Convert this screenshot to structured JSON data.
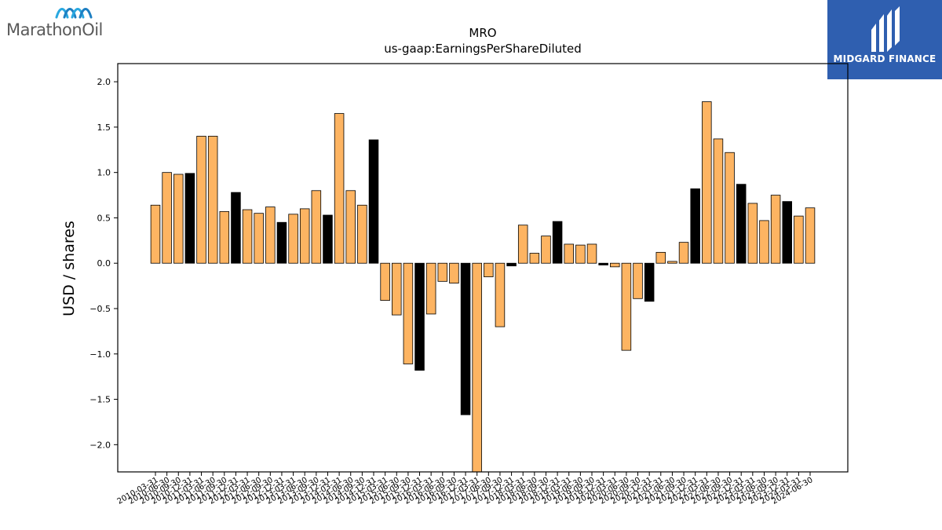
{
  "branding": {
    "left_logo_text": "MarathonOil",
    "right_logo_text": "MIDGARD FINANCE",
    "right_logo_bg": "#2f5fb0"
  },
  "colors": {
    "bar_default": "#fdb462",
    "bar_highlight": "#000000",
    "bar_edge": "#000000"
  },
  "chart_data": {
    "type": "bar",
    "title": "MRO",
    "subtitle": "us-gaap:EarningsPerShareDiluted",
    "xlabel": "",
    "ylabel": "USD / shares",
    "ylim": [
      -2.3,
      2.2
    ],
    "yticks": [
      -2.0,
      -1.5,
      -1.0,
      -0.5,
      0.0,
      0.5,
      1.0,
      1.5,
      2.0
    ],
    "grid": false,
    "categories": [
      "2010-03-31",
      "2010-06-30",
      "2010-09-30",
      "2010-12-31",
      "2011-03-31",
      "2011-06-30",
      "2011-09-30",
      "2011-12-31",
      "2012-03-31",
      "2012-06-30",
      "2012-09-30",
      "2012-12-31",
      "2013-03-31",
      "2013-06-30",
      "2013-09-30",
      "2013-12-31",
      "2014-03-31",
      "2014-06-30",
      "2014-09-30",
      "2014-12-31",
      "2015-03-31",
      "2015-06-30",
      "2015-09-30",
      "2015-12-31",
      "2016-03-31",
      "2016-06-30",
      "2016-09-30",
      "2016-12-31",
      "2017-03-31",
      "2017-06-30",
      "2017-09-30",
      "2017-12-31",
      "2018-03-31",
      "2018-06-30",
      "2018-09-30",
      "2018-12-31",
      "2019-03-31",
      "2019-06-30",
      "2019-09-30",
      "2019-12-31",
      "2020-03-31",
      "2020-06-30",
      "2020-09-30",
      "2020-12-31",
      "2021-03-31",
      "2021-06-30",
      "2021-09-30",
      "2021-12-31",
      "2022-03-31",
      "2022-06-30",
      "2022-09-30",
      "2022-12-31",
      "2023-03-31",
      "2023-06-30",
      "2023-09-30",
      "2023-12-31",
      "2024-03-31",
      "2024-06-30"
    ],
    "values": [
      0.64,
      1.0,
      0.98,
      0.99,
      1.4,
      1.4,
      0.57,
      0.78,
      0.59,
      0.55,
      0.62,
      0.45,
      0.54,
      0.6,
      0.8,
      0.53,
      1.65,
      0.8,
      0.64,
      1.36,
      -0.41,
      -0.57,
      -1.11,
      -1.18,
      -0.56,
      -0.2,
      -0.22,
      -1.67,
      -2.45,
      -0.15,
      -0.7,
      -0.03,
      0.42,
      0.11,
      0.3,
      0.46,
      0.21,
      0.2,
      0.21,
      -0.02,
      -0.04,
      -0.96,
      -0.39,
      -0.42,
      0.12,
      0.02,
      0.23,
      0.82,
      1.78,
      1.37,
      1.22,
      0.87,
      0.66,
      0.47,
      0.75,
      0.68,
      0.52,
      0.61
    ],
    "highlight_indices": [
      3,
      7,
      11,
      15,
      19,
      23,
      27,
      31,
      35,
      39,
      43,
      47,
      51,
      55
    ]
  }
}
